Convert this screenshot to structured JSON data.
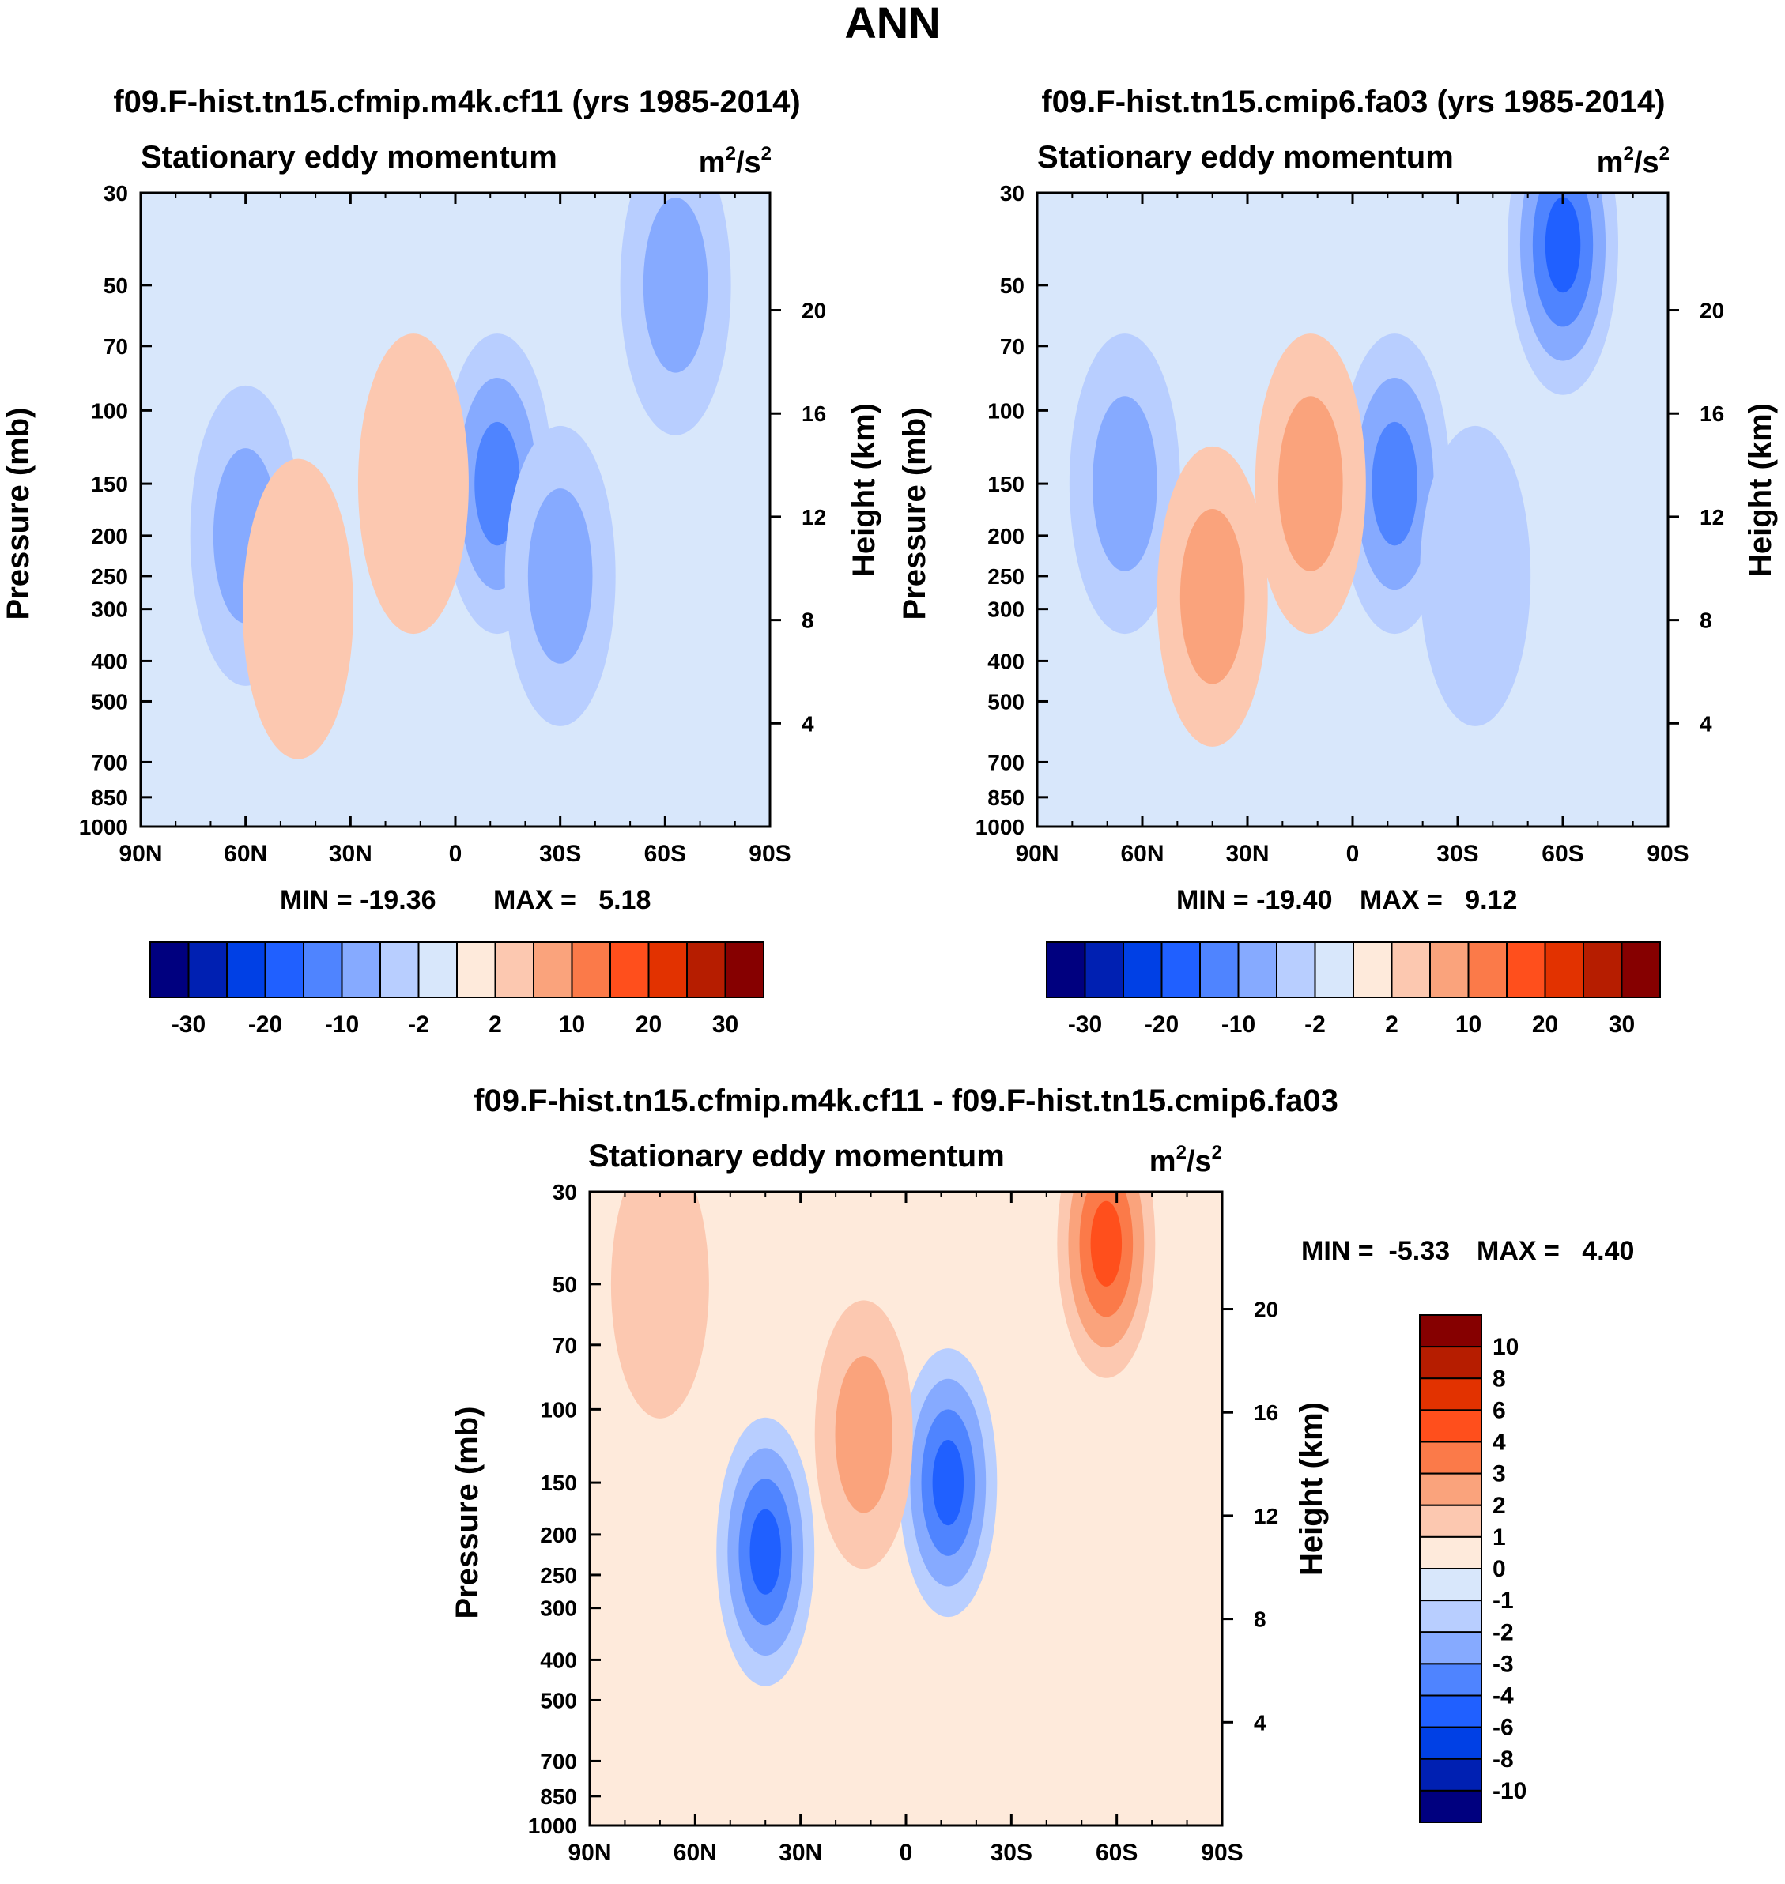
{
  "page_title": "ANN",
  "colors": {
    "scale": [
      "#00007f",
      "#0020b2",
      "#0040e5",
      "#2060ff",
      "#4f84ff",
      "#86aaff",
      "#b8ceff",
      "#d8e7fb",
      "#feeadb",
      "#fcc8b0",
      "#faa37c",
      "#fb7a49",
      "#ff4f1c",
      "#e23200",
      "#b61d00",
      "#860000"
    ],
    "frame": "#000000"
  },
  "chart_data": [
    {
      "type": "contour",
      "title": "f09.F-hist.tn15.cfmip.m4k.cf11 (yrs 1985-2014)",
      "subtitle": "Stationary eddy momentum",
      "units_base": "m",
      "units_sup1": "2",
      "units_mid": "/s",
      "units_sup2": "2",
      "ylabel": "Pressure (mb)",
      "ylabel_right": "Height (km)",
      "x_ticks": [
        "90N",
        "60N",
        "30N",
        "0",
        "30S",
        "60S",
        "90S"
      ],
      "y_ticks": [
        "30",
        "50",
        "70",
        "100",
        "150",
        "200",
        "250",
        "300",
        "400",
        "500",
        "700",
        "850",
        "1000"
      ],
      "y_ticks_right": [
        "20",
        "16",
        "12",
        "8",
        "4"
      ],
      "xlim": [
        90,
        -90
      ],
      "ylim": [
        1000,
        30
      ],
      "min_label": "MIN = -19.36",
      "max_label": "MAX =   5.18",
      "colorbar_labels": [
        "-30",
        "-20",
        "-10",
        "-2",
        "2",
        "10",
        "20",
        "30"
      ],
      "features": [
        {
          "lat": 60,
          "p": 200,
          "value": -5
        },
        {
          "lat": -12,
          "p": 150,
          "value": -12
        },
        {
          "lat": 45,
          "p": 300,
          "value": 3
        },
        {
          "lat": 12,
          "p": 150,
          "value": 3
        },
        {
          "lat": -30,
          "p": 250,
          "value": -5
        },
        {
          "lat": -63,
          "p": 50,
          "value": -8
        }
      ]
    },
    {
      "type": "contour",
      "title": "f09.F-hist.tn15.cmip6.fa03 (yrs 1985-2014)",
      "subtitle": "Stationary eddy momentum",
      "units_base": "m",
      "units_sup1": "2",
      "units_mid": "/s",
      "units_sup2": "2",
      "ylabel": "Pressure (mb)",
      "ylabel_right": "Height (km)",
      "x_ticks": [
        "90N",
        "60N",
        "30N",
        "0",
        "30S",
        "60S",
        "90S"
      ],
      "y_ticks": [
        "30",
        "50",
        "70",
        "100",
        "150",
        "200",
        "250",
        "300",
        "400",
        "500",
        "700",
        "850",
        "1000"
      ],
      "y_ticks_right": [
        "20",
        "16",
        "12",
        "8",
        "4"
      ],
      "xlim": [
        90,
        -90
      ],
      "ylim": [
        1000,
        30
      ],
      "min_label": "MIN = -19.40",
      "max_label": "MAX =   9.12",
      "colorbar_labels": [
        "-30",
        "-20",
        "-10",
        "-2",
        "2",
        "10",
        "20",
        "30"
      ],
      "features": [
        {
          "lat": 65,
          "p": 150,
          "value": -5
        },
        {
          "lat": -12,
          "p": 150,
          "value": -12
        },
        {
          "lat": 40,
          "p": 280,
          "value": 9
        },
        {
          "lat": 12,
          "p": 150,
          "value": 9
        },
        {
          "lat": -35,
          "p": 250,
          "value": -3
        },
        {
          "lat": -60,
          "p": 40,
          "value": -19
        }
      ]
    },
    {
      "type": "contour",
      "title": "f09.F-hist.tn15.cfmip.m4k.cf11 - f09.F-hist.tn15.cmip6.fa03",
      "subtitle": "Stationary eddy momentum",
      "units_base": "m",
      "units_sup1": "2",
      "units_mid": "/s",
      "units_sup2": "2",
      "ylabel": "Pressure (mb)",
      "ylabel_right": "Height (km)",
      "x_ticks": [
        "90N",
        "60N",
        "30N",
        "0",
        "30S",
        "60S",
        "90S"
      ],
      "y_ticks": [
        "30",
        "50",
        "70",
        "100",
        "150",
        "200",
        "250",
        "300",
        "400",
        "500",
        "700",
        "850",
        "1000"
      ],
      "y_ticks_right": [
        "20",
        "16",
        "12",
        "8",
        "4"
      ],
      "xlim": [
        90,
        -90
      ],
      "ylim": [
        1000,
        30
      ],
      "min_label": "MIN =  -5.33",
      "max_label": "MAX =   4.40",
      "colorbar_labels": [
        "10",
        "8",
        "6",
        "4",
        "3",
        "2",
        "1",
        "0",
        "-1",
        "-2",
        "-3",
        "-4",
        "-6",
        "-8",
        "-10"
      ],
      "features": [
        {
          "lat": 40,
          "p": 220,
          "value": -5
        },
        {
          "lat": -12,
          "p": 150,
          "value": -5
        },
        {
          "lat": 12,
          "p": 115,
          "value": 2
        },
        {
          "lat": -57,
          "p": 40,
          "value": 4
        },
        {
          "lat": 70,
          "p": 50,
          "value": 1
        }
      ]
    }
  ]
}
